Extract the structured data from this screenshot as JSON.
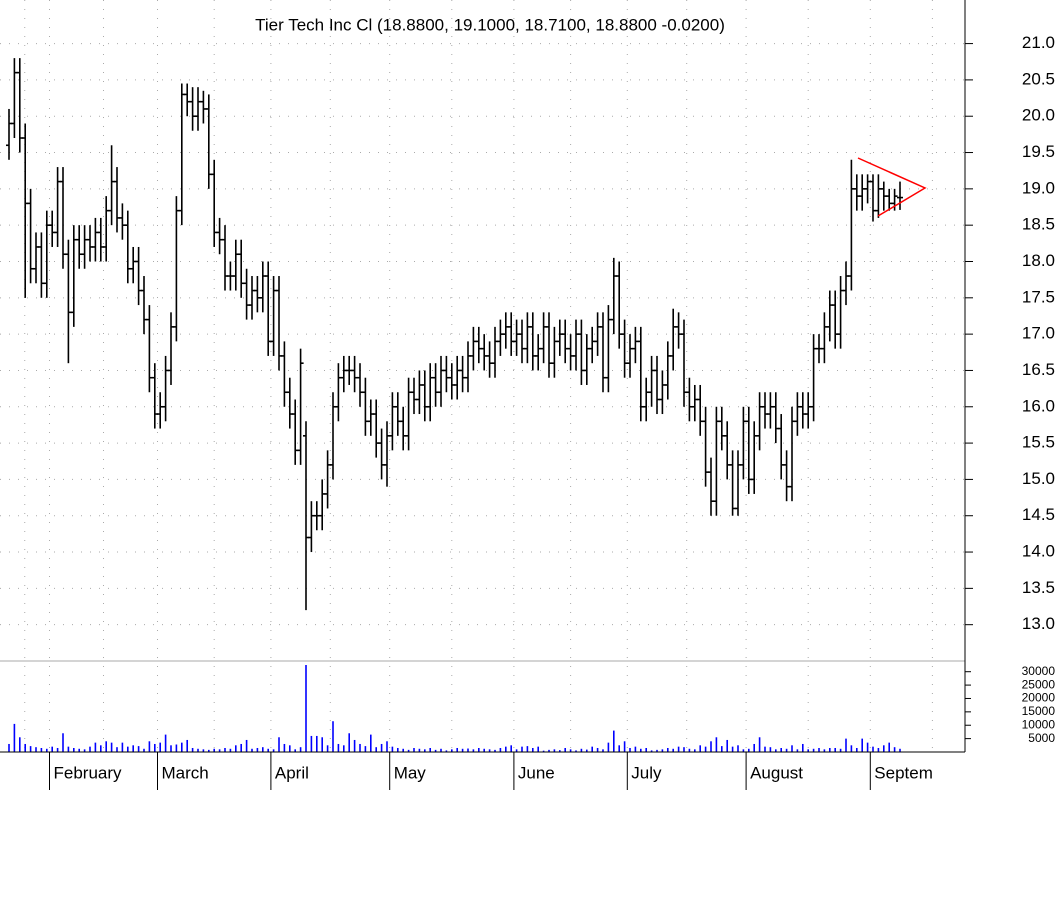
{
  "chart_data": [
    {
      "type": "ohlc",
      "title": "Tier Tech Inc Cl (18.8800, 19.1000, 18.7100, 18.8800 -0.0200)",
      "color": "#000000",
      "grid": true,
      "categories": [
        null,
        null,
        null,
        null,
        null,
        null,
        null,
        null,
        "February",
        null,
        null,
        null,
        null,
        null,
        null,
        null,
        null,
        null,
        null,
        null,
        null,
        null,
        null,
        null,
        null,
        null,
        null,
        null,
        "March",
        null,
        null,
        null,
        null,
        null,
        null,
        null,
        null,
        null,
        null,
        null,
        null,
        null,
        null,
        null,
        null,
        null,
        null,
        null,
        null,
        "April",
        null,
        null,
        null,
        null,
        null,
        null,
        null,
        null,
        null,
        null,
        null,
        null,
        null,
        null,
        null,
        null,
        null,
        null,
        null,
        null,
        null,
        "May",
        null,
        null,
        null,
        null,
        null,
        null,
        null,
        null,
        null,
        null,
        null,
        null,
        null,
        null,
        null,
        null,
        null,
        null,
        null,
        null,
        null,
        null,
        "June",
        null,
        null,
        null,
        null,
        null,
        null,
        null,
        null,
        null,
        null,
        null,
        null,
        null,
        null,
        null,
        null,
        null,
        null,
        null,
        null,
        "July",
        null,
        null,
        null,
        null,
        null,
        null,
        null,
        null,
        null,
        null,
        null,
        null,
        null,
        null,
        null,
        null,
        null,
        null,
        null,
        null,
        null,
        "August",
        null,
        null,
        null,
        null,
        null,
        null,
        null,
        null,
        null,
        null,
        null,
        null,
        null,
        null,
        null,
        null,
        null,
        null,
        null,
        null,
        null,
        null,
        "Septem",
        null,
        null,
        null,
        null,
        null
      ],
      "open": [
        19.6,
        19.9,
        20.6,
        19.7,
        18.8,
        17.9,
        18.2,
        17.7,
        18.5,
        18.4,
        19.1,
        18.1,
        17.3,
        18.3,
        18.1,
        18.3,
        18.2,
        18.4,
        18.2,
        18.7,
        19.1,
        18.6,
        18.5,
        17.9,
        18.0,
        17.6,
        17.2,
        16.4,
        15.9,
        16.0,
        16.5,
        17.1,
        18.7,
        20.3,
        20.2,
        20.0,
        20.2,
        20.1,
        19.2,
        18.4,
        18.3,
        17.8,
        17.8,
        18.1,
        17.7,
        17.4,
        17.6,
        17.5,
        17.8,
        16.9,
        17.6,
        16.7,
        16.2,
        15.9,
        15.4,
        15.6,
        14.2,
        14.5,
        14.5,
        14.8,
        15.2,
        16.0,
        16.4,
        16.5,
        16.5,
        16.4,
        16.2,
        15.8,
        15.9,
        15.5,
        15.2,
        15.6,
        16.0,
        15.8,
        15.6,
        16.2,
        16.1,
        16.3,
        16.0,
        16.4,
        16.2,
        16.5,
        16.4,
        16.3,
        16.5,
        16.4,
        16.7,
        16.9,
        16.8,
        16.7,
        16.6,
        16.9,
        17.0,
        17.1,
        16.9,
        17.0,
        16.8,
        17.1,
        16.7,
        16.8,
        17.1,
        16.6,
        16.9,
        17.0,
        16.8,
        16.7,
        17.0,
        16.5,
        16.8,
        16.9,
        17.1,
        16.4,
        17.2,
        17.8,
        17.0,
        16.6,
        16.8,
        16.9,
        16.0,
        16.2,
        16.5,
        16.1,
        16.3,
        16.7,
        17.1,
        17.0,
        16.2,
        16.0,
        16.1,
        15.8,
        15.1,
        14.7,
        15.8,
        15.6,
        15.2,
        14.6,
        15.2,
        15.8,
        15.0,
        15.6,
        16.0,
        15.9,
        16.0,
        15.7,
        15.2,
        14.9,
        15.8,
        16.0,
        15.9,
        16.0,
        16.8,
        16.8,
        17.1,
        17.4,
        17.0,
        17.6,
        17.8,
        19.0,
        18.9,
        19.0,
        19.1,
        18.7,
        19.0,
        18.9,
        18.8,
        18.88
      ],
      "high": [
        20.1,
        20.8,
        20.8,
        19.9,
        19.0,
        18.4,
        18.4,
        18.7,
        18.7,
        19.3,
        19.3,
        18.3,
        18.5,
        18.5,
        18.5,
        18.5,
        18.6,
        18.6,
        18.9,
        19.6,
        19.3,
        18.8,
        18.7,
        18.2,
        18.2,
        17.8,
        17.4,
        16.6,
        16.2,
        16.7,
        17.3,
        18.9,
        20.45,
        20.45,
        20.4,
        20.4,
        20.35,
        20.3,
        19.4,
        18.6,
        18.5,
        18.0,
        18.3,
        18.3,
        17.9,
        17.8,
        17.8,
        18.0,
        18.0,
        17.8,
        17.8,
        16.9,
        16.4,
        16.1,
        16.8,
        15.8,
        14.7,
        14.7,
        15.0,
        15.4,
        16.2,
        16.6,
        16.7,
        16.7,
        16.7,
        16.6,
        16.4,
        16.1,
        16.1,
        15.7,
        15.8,
        16.2,
        16.2,
        16.0,
        16.4,
        16.4,
        16.5,
        16.5,
        16.6,
        16.6,
        16.7,
        16.7,
        16.6,
        16.7,
        16.7,
        16.9,
        17.1,
        17.1,
        17.0,
        16.9,
        17.1,
        17.2,
        17.3,
        17.3,
        17.2,
        17.2,
        17.3,
        17.3,
        17.0,
        17.3,
        17.3,
        17.1,
        17.2,
        17.2,
        17.0,
        17.2,
        17.2,
        17.0,
        17.1,
        17.3,
        17.3,
        17.4,
        18.05,
        18.0,
        17.2,
        17.0,
        17.1,
        17.1,
        16.4,
        16.7,
        16.7,
        16.5,
        16.9,
        17.35,
        17.3,
        17.2,
        16.4,
        16.3,
        16.3,
        16.0,
        15.3,
        16.0,
        16.0,
        15.8,
        15.4,
        15.4,
        16.0,
        16.0,
        15.8,
        16.2,
        16.2,
        16.2,
        16.2,
        15.9,
        15.4,
        16.0,
        16.2,
        16.2,
        16.2,
        17.0,
        17.0,
        17.3,
        17.6,
        17.6,
        17.8,
        18.0,
        19.4,
        19.2,
        19.2,
        19.2,
        19.2,
        19.2,
        19.1,
        19.0,
        19.0,
        19.1
      ],
      "low": [
        19.4,
        19.7,
        19.5,
        17.5,
        17.7,
        17.7,
        17.5,
        17.5,
        18.2,
        18.2,
        17.9,
        16.6,
        17.1,
        17.9,
        17.9,
        18.0,
        18.0,
        18.0,
        18.0,
        18.5,
        18.4,
        18.3,
        17.7,
        17.7,
        17.4,
        17.0,
        16.2,
        15.7,
        15.7,
        15.8,
        16.3,
        16.9,
        18.5,
        20.0,
        19.8,
        19.8,
        19.9,
        19.0,
        18.2,
        18.1,
        17.6,
        17.6,
        17.6,
        17.5,
        17.2,
        17.2,
        17.3,
        17.3,
        16.7,
        16.7,
        16.5,
        16.0,
        15.7,
        15.2,
        15.2,
        13.2,
        14.0,
        14.3,
        14.3,
        14.6,
        15.0,
        15.8,
        16.2,
        16.3,
        16.2,
        16.0,
        15.6,
        15.6,
        15.3,
        15.0,
        14.9,
        15.4,
        15.6,
        15.4,
        15.4,
        15.9,
        15.9,
        15.8,
        15.8,
        16.0,
        16.0,
        16.2,
        16.1,
        16.1,
        16.2,
        16.2,
        16.5,
        16.6,
        16.5,
        16.4,
        16.4,
        16.7,
        16.8,
        16.7,
        16.7,
        16.6,
        16.6,
        16.5,
        16.5,
        16.6,
        16.4,
        16.4,
        16.7,
        16.6,
        16.5,
        16.5,
        16.3,
        16.3,
        16.6,
        16.7,
        16.2,
        16.2,
        17.0,
        16.8,
        16.4,
        16.4,
        16.6,
        15.8,
        15.8,
        16.0,
        15.9,
        15.9,
        16.1,
        16.5,
        16.8,
        16.0,
        15.8,
        15.8,
        15.6,
        14.9,
        14.5,
        14.5,
        15.4,
        15.0,
        14.5,
        14.5,
        15.0,
        14.8,
        14.8,
        15.4,
        15.7,
        15.7,
        15.5,
        15.0,
        14.7,
        14.7,
        15.6,
        15.7,
        15.7,
        15.8,
        16.6,
        16.6,
        16.9,
        16.8,
        16.8,
        17.4,
        17.6,
        18.7,
        18.7,
        18.8,
        18.55,
        18.6,
        18.7,
        18.7,
        18.7,
        18.71
      ],
      "close": [
        19.9,
        20.6,
        19.7,
        18.8,
        17.9,
        18.2,
        17.7,
        18.5,
        18.4,
        19.1,
        18.1,
        17.3,
        18.3,
        18.1,
        18.3,
        18.2,
        18.4,
        18.2,
        18.7,
        19.1,
        18.6,
        18.5,
        17.9,
        18.0,
        17.6,
        17.2,
        16.4,
        15.9,
        16.0,
        16.5,
        17.1,
        18.7,
        20.3,
        20.2,
        20.0,
        20.2,
        20.1,
        19.2,
        18.4,
        18.3,
        17.8,
        17.8,
        18.1,
        17.7,
        17.4,
        17.6,
        17.5,
        17.8,
        16.9,
        17.6,
        16.7,
        16.2,
        15.9,
        15.4,
        16.6,
        14.2,
        14.5,
        14.5,
        14.8,
        15.2,
        16.0,
        16.4,
        16.5,
        16.5,
        16.4,
        16.2,
        15.8,
        15.9,
        15.5,
        15.2,
        15.6,
        16.0,
        15.8,
        15.6,
        16.2,
        16.1,
        16.3,
        16.0,
        16.4,
        16.2,
        16.5,
        16.4,
        16.3,
        16.5,
        16.4,
        16.7,
        16.9,
        16.8,
        16.7,
        16.6,
        16.9,
        17.0,
        17.1,
        16.9,
        17.0,
        16.8,
        17.1,
        16.7,
        16.8,
        17.1,
        16.6,
        16.9,
        17.0,
        16.8,
        16.7,
        17.0,
        16.5,
        16.8,
        16.9,
        17.1,
        16.4,
        17.2,
        17.8,
        17.0,
        16.6,
        16.8,
        16.9,
        16.0,
        16.2,
        16.5,
        16.1,
        16.3,
        16.7,
        17.1,
        17.0,
        16.2,
        16.0,
        16.1,
        15.8,
        15.1,
        14.7,
        15.8,
        15.6,
        15.2,
        14.6,
        15.2,
        15.8,
        15.0,
        15.6,
        16.0,
        15.9,
        16.0,
        15.7,
        15.2,
        14.9,
        15.8,
        16.0,
        15.9,
        16.0,
        16.8,
        16.8,
        17.1,
        17.4,
        17.0,
        17.6,
        17.8,
        19.0,
        18.9,
        19.0,
        19.1,
        18.7,
        19.0,
        18.9,
        18.8,
        18.9,
        18.88
      ],
      "ylim": [
        12.5,
        21.6
      ],
      "yticks": [
        {
          "value": 13,
          "label": "13.0"
        },
        13.5,
        {
          "value": 14,
          "label": "14.0"
        },
        14.5,
        {
          "value": 15,
          "label": "15.0"
        },
        15.5,
        {
          "value": 16,
          "label": "16.0"
        },
        16.5,
        {
          "value": 17,
          "label": "17.0"
        },
        17.5,
        {
          "value": 18,
          "label": "18.0"
        },
        18.5,
        {
          "value": 19,
          "label": "19.0"
        },
        19.5,
        {
          "value": 20,
          "label": "20.0"
        },
        20.5,
        {
          "value": 21,
          "label": "21.0"
        }
      ]
    },
    {
      "type": "bar",
      "color": "#0000ff",
      "values": [
        3000,
        10500,
        5500,
        3000,
        2200,
        1800,
        1500,
        1200,
        2000,
        1500,
        7000,
        2000,
        1500,
        1200,
        1000,
        2000,
        3500,
        2500,
        4000,
        3500,
        1800,
        3500,
        2000,
        2500,
        2200,
        1200,
        4000,
        3000,
        3500,
        6500,
        2500,
        2800,
        3500,
        4500,
        1500,
        1200,
        1000,
        800,
        1200,
        1000,
        1500,
        1200,
        2500,
        3000,
        4500,
        1200,
        1500,
        1800,
        1200,
        1000,
        5500,
        3000,
        2500,
        1000,
        1800,
        32500,
        6000,
        6000,
        5500,
        2500,
        11500,
        3000,
        2500,
        7000,
        4500,
        3000,
        2200,
        6500,
        1800,
        3000,
        4000,
        2000,
        1500,
        1200,
        800,
        1500,
        1200,
        1000,
        1500,
        800,
        1200,
        600,
        1000,
        1500,
        1200,
        1300,
        1000,
        1500,
        1200,
        1000,
        800,
        1500,
        2000,
        2500,
        1000,
        2000,
        2200,
        1500,
        2000,
        500,
        800,
        1000,
        700,
        1500,
        1000,
        600,
        1200,
        900,
        2000,
        1500,
        1000,
        3500,
        8000,
        2500,
        4000,
        1500,
        2000,
        1200,
        1500,
        600,
        800,
        1000,
        1500,
        1200,
        2000,
        1800,
        1200,
        1000,
        2500,
        2000,
        4000,
        5500,
        2200,
        4500,
        2000,
        2500,
        1000,
        1200,
        3000,
        5500,
        2000,
        1800,
        1000,
        1500,
        1200,
        2500,
        1000,
        3000,
        1000,
        1200,
        1500,
        1000,
        1500,
        1500,
        1200,
        5000,
        2500,
        1500,
        5000,
        3500,
        2000,
        1500,
        2500,
        3500,
        1800,
        1200
      ],
      "ylim": [
        0,
        34000
      ],
      "yticks": [
        5000,
        10000,
        15000,
        20000,
        25000,
        30000
      ]
    }
  ]
}
